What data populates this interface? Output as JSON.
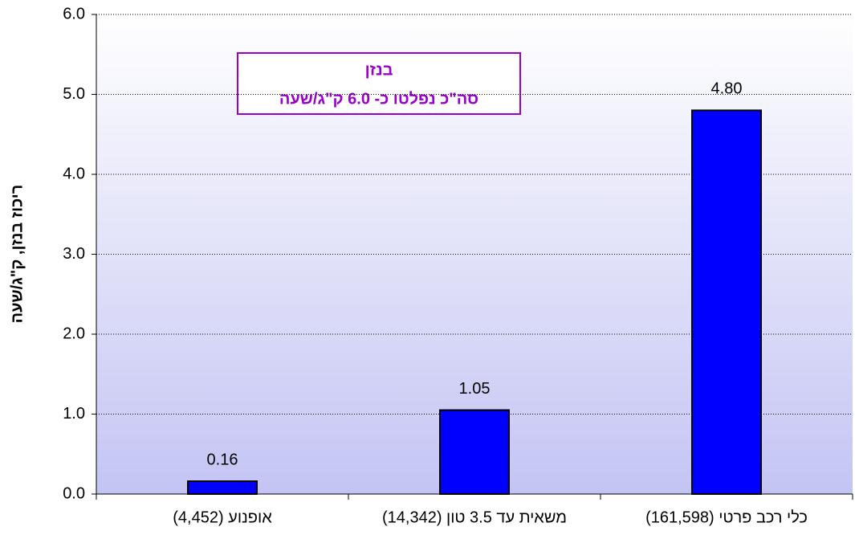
{
  "chart_data": {
    "type": "bar",
    "y_label": "ריכוז בנזן, ק\"ג/שעה",
    "annotation": [
      "בנזן",
      "סה\"כ נפלטו כ- 6.0 ק\"ג/שעה"
    ],
    "categories": [
      "אופנוע (4,452)",
      "משאית עד 3.5 טון (14,342)",
      "כלי רכב פרטי (161,598)"
    ],
    "values": [
      0.16,
      1.05,
      4.8
    ],
    "value_labels": [
      "0.16",
      "1.05",
      "4.80"
    ],
    "color": "#0000ff",
    "ylim": [
      0,
      6
    ],
    "yticks": [
      {
        "value": 0,
        "label": "0.0"
      },
      {
        "value": 1,
        "label": "1.0"
      },
      {
        "value": 2,
        "label": "2.0"
      },
      {
        "value": 3,
        "label": "3.0"
      },
      {
        "value": 4,
        "label": "4.0"
      },
      {
        "value": 5,
        "label": "5.0"
      },
      {
        "value": 6,
        "label": "6.0"
      }
    ],
    "grid": true
  }
}
